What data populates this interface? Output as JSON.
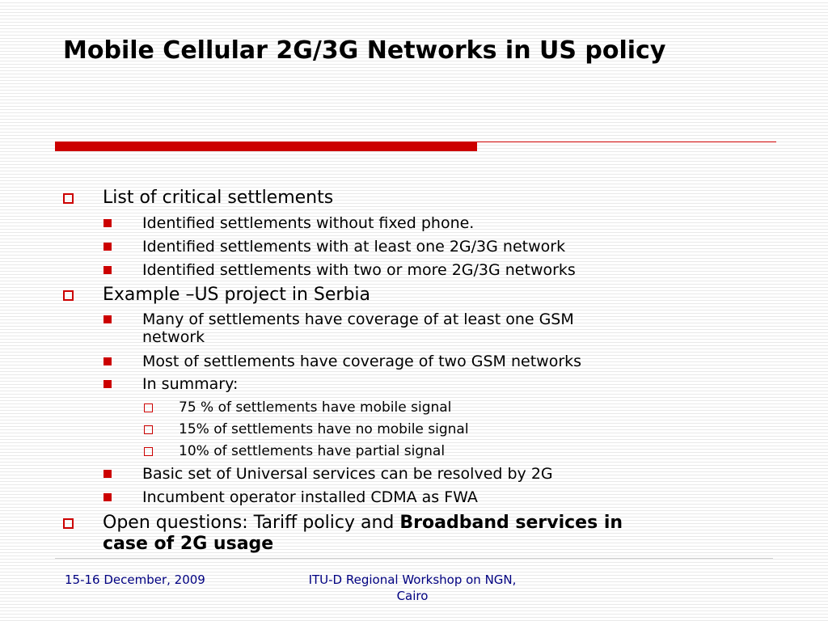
{
  "title": "Mobile Cellular 2G/3G Networks in US policy",
  "colors": {
    "accent": "#cc0000",
    "footer_text": "#000080"
  },
  "bullets": {
    "b1": "List of critical settlements",
    "b1_1": "Identified settlements without fixed phone.",
    "b1_2": "Identified settlements  with at least one 2G/3G network",
    "b1_3": "Identified settlements  with two or more 2G/3G networks",
    "b2": "Example –US project in Serbia",
    "b2_1_line1": "Many of settlements have coverage of at least one GSM",
    "b2_1_line2": "network",
    "b2_2": "Most of settlements  have coverage of two GSM networks",
    "b2_3": "In summary:",
    "b2_3_1": "75 % of settlements have mobile signal",
    "b2_3_2": "15% of settlements have no mobile signal",
    "b2_3_3": "10% of settlements have partial signal",
    "b2_4": "Basic set of Universal services can be resolved by 2G",
    "b2_5": "Incumbent operator installed CDMA as FWA",
    "b3_plain": "Open questions: Tariff policy and ",
    "b3_bold_line1": "Broadband services in",
    "b3_bold_line2": "case of 2G usage"
  },
  "footer": {
    "date": "15-16 December, 2009",
    "event_line1": "ITU-D Regional Workshop on NGN,",
    "event_line2": "Cairo"
  }
}
